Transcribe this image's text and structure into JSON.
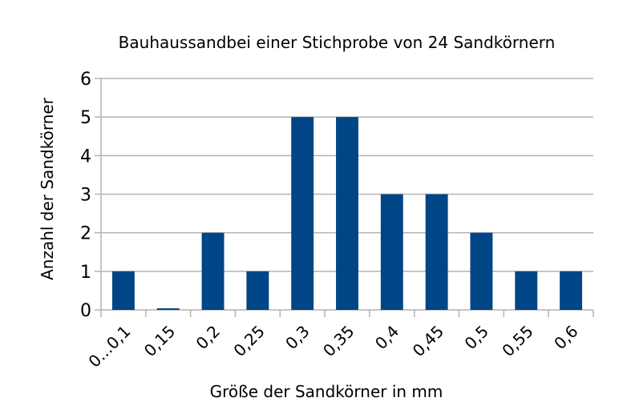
{
  "chart_data": {
    "type": "bar",
    "title": "Bauhaussandbei einer Stichprobe von 24 Sandkörnern",
    "xlabel": "Größe der Sandkörner in mm",
    "ylabel": "Anzahl der Sandkörner",
    "categories": [
      "0...0,1",
      "0,15",
      "0,2",
      "0,25",
      "0,3",
      "0,35",
      "0,4",
      "0,45",
      "0,5",
      "0,55",
      "0,6"
    ],
    "values": [
      1,
      0,
      2,
      1,
      5,
      5,
      3,
      3,
      2,
      1,
      1
    ],
    "ylim": [
      0,
      6
    ],
    "yticks": [
      "0",
      "1",
      "2",
      "3",
      "4",
      "5",
      "6"
    ],
    "grid": true,
    "colors": {
      "bar": "#004586"
    }
  }
}
